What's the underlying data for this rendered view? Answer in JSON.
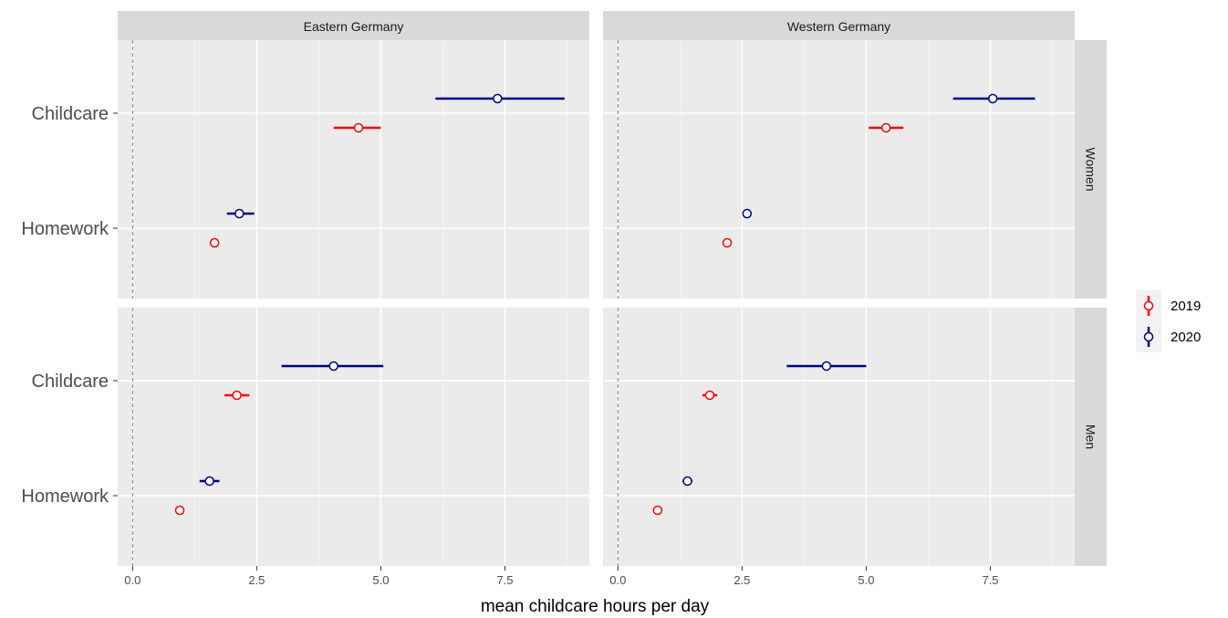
{
  "chart_data": {
    "type": "scatter",
    "subtype": "point-range facet grid",
    "xlabel": "mean childcare hours per day",
    "ylabel": "",
    "xlim": [
      -0.3,
      9.2
    ],
    "x_ticks": [
      "0.0",
      "2.5",
      "5.0",
      "7.5"
    ],
    "x_tick_values": [
      0,
      2.5,
      5,
      7.5
    ],
    "reference_line_x": 0,
    "categories": [
      "Childcare",
      "Homework"
    ],
    "column_facets": [
      "Eastern Germany",
      "Western Germany"
    ],
    "row_facets": [
      "Women",
      "Men"
    ],
    "grid": true,
    "legend_position": "right",
    "series": [
      {
        "name": "2019",
        "color": "#ff0000"
      },
      {
        "name": "2020",
        "color": "#00008b"
      }
    ],
    "panels": [
      {
        "column": "Eastern Germany",
        "row": "Women",
        "points": [
          {
            "category": "Childcare",
            "series": "2020",
            "x": 7.35,
            "low": 6.1,
            "high": 8.7
          },
          {
            "category": "Childcare",
            "series": "2019",
            "x": 4.55,
            "low": 4.05,
            "high": 5.0
          },
          {
            "category": "Homework",
            "series": "2020",
            "x": 2.15,
            "low": 1.9,
            "high": 2.45
          },
          {
            "category": "Homework",
            "series": "2019",
            "x": 1.65,
            "low": 1.65,
            "high": 1.65
          }
        ]
      },
      {
        "column": "Western Germany",
        "row": "Women",
        "points": [
          {
            "category": "Childcare",
            "series": "2020",
            "x": 7.55,
            "low": 6.75,
            "high": 8.4
          },
          {
            "category": "Childcare",
            "series": "2019",
            "x": 5.4,
            "low": 5.05,
            "high": 5.75
          },
          {
            "category": "Homework",
            "series": "2020",
            "x": 2.6,
            "low": 2.6,
            "high": 2.6
          },
          {
            "category": "Homework",
            "series": "2019",
            "x": 2.2,
            "low": 2.2,
            "high": 2.2
          }
        ]
      },
      {
        "column": "Eastern Germany",
        "row": "Men",
        "points": [
          {
            "category": "Childcare",
            "series": "2020",
            "x": 4.05,
            "low": 3.0,
            "high": 5.05
          },
          {
            "category": "Childcare",
            "series": "2019",
            "x": 2.1,
            "low": 1.85,
            "high": 2.35
          },
          {
            "category": "Homework",
            "series": "2020",
            "x": 1.55,
            "low": 1.35,
            "high": 1.75
          },
          {
            "category": "Homework",
            "series": "2019",
            "x": 0.95,
            "low": 0.95,
            "high": 0.95
          }
        ]
      },
      {
        "column": "Western Germany",
        "row": "Men",
        "points": [
          {
            "category": "Childcare",
            "series": "2020",
            "x": 4.2,
            "low": 3.4,
            "high": 5.0
          },
          {
            "category": "Childcare",
            "series": "2019",
            "x": 1.85,
            "low": 1.7,
            "high": 2.0
          },
          {
            "category": "Homework",
            "series": "2020",
            "x": 1.4,
            "low": 1.3,
            "high": 1.5
          },
          {
            "category": "Homework",
            "series": "2019",
            "x": 0.8,
            "low": 0.8,
            "high": 0.8
          }
        ]
      }
    ]
  }
}
